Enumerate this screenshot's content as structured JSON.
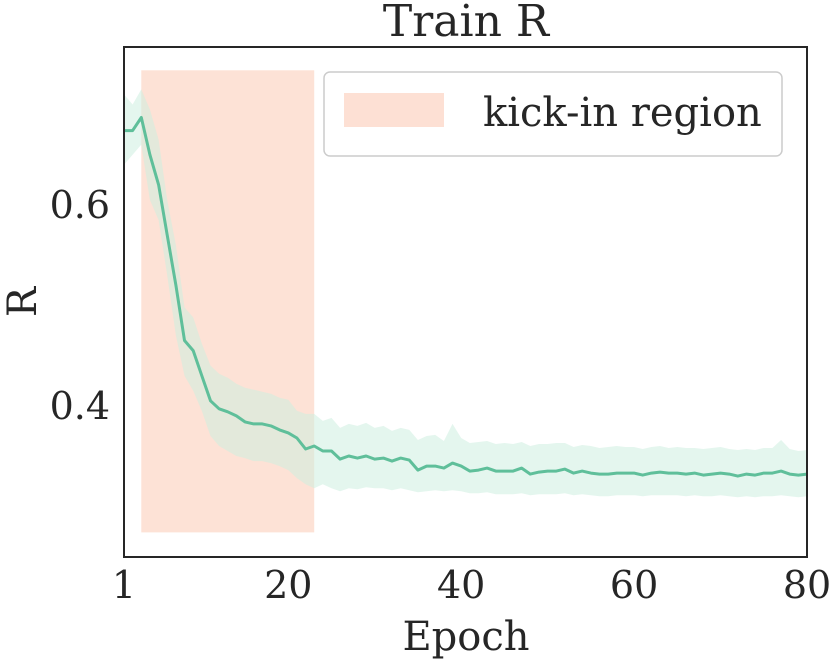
{
  "chart_data": {
    "type": "line",
    "title": "Train R",
    "xlabel": "Epoch",
    "ylabel": "R",
    "xlim": [
      1,
      80
    ],
    "ylim": [
      0.2495,
      0.7572
    ],
    "xticks": [
      1,
      20,
      40,
      60,
      80
    ],
    "xtick_labels": [
      "1",
      "20",
      "40",
      "60",
      "80"
    ],
    "yticks": [
      0.4,
      0.6
    ],
    "ytick_labels": [
      "0.4",
      "0.6"
    ],
    "grid": false,
    "legend": {
      "position": "top-right",
      "entries": [
        {
          "label": "kick-in region",
          "color": "#fde0d4"
        }
      ]
    },
    "kick_in_region": {
      "x_start": 3,
      "x_end": 23,
      "y_start": 0.274,
      "y_end": 0.734
    },
    "series": [
      {
        "color": "#5fbf9a",
        "band_color": "#cdeee0",
        "x": [
          1,
          2,
          3,
          4,
          5,
          6,
          7,
          8,
          9,
          10,
          11,
          12,
          13,
          14,
          15,
          16,
          17,
          18,
          19,
          20,
          21,
          22,
          23,
          24,
          25,
          26,
          27,
          28,
          29,
          30,
          31,
          32,
          33,
          34,
          35,
          36,
          37,
          38,
          39,
          40,
          41,
          42,
          43,
          44,
          45,
          46,
          47,
          48,
          49,
          50,
          51,
          52,
          53,
          54,
          55,
          56,
          57,
          58,
          59,
          60,
          61,
          62,
          63,
          64,
          65,
          66,
          67,
          68,
          69,
          70,
          71,
          72,
          73,
          74,
          75,
          76,
          77,
          78,
          79,
          80
        ],
        "y": [
          0.674,
          0.674,
          0.687,
          0.65,
          0.62,
          0.57,
          0.52,
          0.465,
          0.455,
          0.43,
          0.405,
          0.397,
          0.394,
          0.39,
          0.384,
          0.382,
          0.382,
          0.38,
          0.376,
          0.373,
          0.368,
          0.357,
          0.36,
          0.355,
          0.355,
          0.347,
          0.35,
          0.348,
          0.35,
          0.347,
          0.348,
          0.345,
          0.348,
          0.346,
          0.336,
          0.34,
          0.34,
          0.338,
          0.343,
          0.34,
          0.335,
          0.336,
          0.338,
          0.335,
          0.335,
          0.335,
          0.338,
          0.332,
          0.334,
          0.335,
          0.335,
          0.337,
          0.333,
          0.335,
          0.333,
          0.332,
          0.332,
          0.333,
          0.333,
          0.333,
          0.331,
          0.333,
          0.334,
          0.333,
          0.333,
          0.332,
          0.333,
          0.331,
          0.332,
          0.333,
          0.332,
          0.33,
          0.332,
          0.331,
          0.333,
          0.333,
          0.335,
          0.332,
          0.331,
          0.332
        ],
        "y_low": [
          0.64,
          0.65,
          0.66,
          0.605,
          0.585,
          0.53,
          0.47,
          0.43,
          0.415,
          0.395,
          0.37,
          0.36,
          0.355,
          0.35,
          0.348,
          0.345,
          0.345,
          0.343,
          0.34,
          0.336,
          0.328,
          0.322,
          0.318,
          0.322,
          0.318,
          0.315,
          0.318,
          0.317,
          0.319,
          0.318,
          0.318,
          0.316,
          0.318,
          0.316,
          0.314,
          0.315,
          0.316,
          0.315,
          0.316,
          0.315,
          0.313,
          0.313,
          0.314,
          0.312,
          0.312,
          0.312,
          0.313,
          0.311,
          0.312,
          0.312,
          0.312,
          0.313,
          0.311,
          0.312,
          0.311,
          0.31,
          0.31,
          0.311,
          0.311,
          0.311,
          0.31,
          0.311,
          0.311,
          0.311,
          0.311,
          0.31,
          0.311,
          0.31,
          0.31,
          0.311,
          0.31,
          0.309,
          0.31,
          0.309,
          0.31,
          0.31,
          0.311,
          0.31,
          0.309,
          0.31
        ],
        "y_high": [
          0.71,
          0.7,
          0.715,
          0.695,
          0.665,
          0.605,
          0.56,
          0.498,
          0.488,
          0.462,
          0.44,
          0.432,
          0.428,
          0.422,
          0.418,
          0.416,
          0.414,
          0.412,
          0.408,
          0.406,
          0.395,
          0.392,
          0.392,
          0.385,
          0.388,
          0.378,
          0.382,
          0.38,
          0.383,
          0.378,
          0.38,
          0.375,
          0.378,
          0.376,
          0.366,
          0.37,
          0.371,
          0.365,
          0.382,
          0.368,
          0.363,
          0.364,
          0.365,
          0.362,
          0.363,
          0.362,
          0.364,
          0.36,
          0.362,
          0.362,
          0.363,
          0.363,
          0.359,
          0.361,
          0.36,
          0.358,
          0.359,
          0.36,
          0.359,
          0.359,
          0.357,
          0.359,
          0.36,
          0.358,
          0.359,
          0.358,
          0.358,
          0.357,
          0.358,
          0.359,
          0.357,
          0.356,
          0.357,
          0.356,
          0.358,
          0.358,
          0.366,
          0.357,
          0.355,
          0.356
        ]
      }
    ]
  }
}
